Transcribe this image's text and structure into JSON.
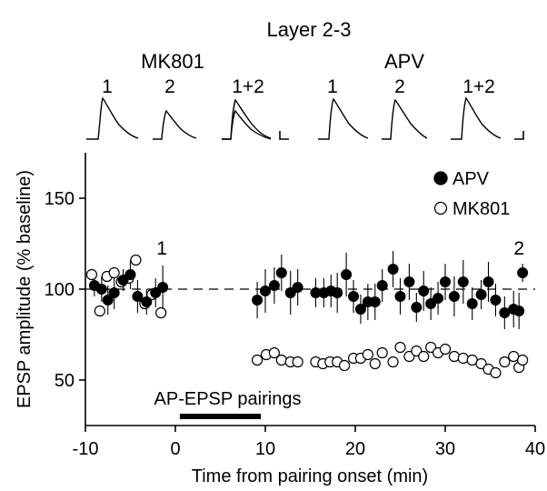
{
  "chart_data": {
    "type": "scatter",
    "title": "Layer 2-3",
    "xlabel": "Time from pairing onset (min)",
    "ylabel": "EPSP amplitude (% baseline)",
    "xlim": [
      -10,
      40
    ],
    "ylim": [
      25,
      175
    ],
    "xticks": [
      -10,
      0,
      10,
      20,
      30,
      40
    ],
    "yticks": [
      50,
      100,
      150
    ],
    "reference_line": 100,
    "pairing_bar": {
      "label": "AP-EPSP pairings",
      "start": 0.5,
      "end": 9.5
    },
    "annotations": [
      {
        "text": "1",
        "x": -1.5,
        "y": 119
      },
      {
        "text": "2",
        "x": 38.2,
        "y": 119
      }
    ],
    "legend_position": "top-right",
    "series": [
      {
        "name": "APV",
        "marker": "filled",
        "color": "#000000",
        "x": [
          -9,
          -8.2,
          -7.5,
          -6.8,
          -5.8,
          -5.0,
          -4.2,
          -3.2,
          -2.2,
          -1.4,
          9.1,
          10.0,
          11.0,
          11.8,
          12.8,
          13.6,
          15.6,
          16.5,
          17.3,
          18.0,
          19.0,
          19.8,
          20.6,
          21.4,
          22.2,
          23.0,
          24.2,
          25.0,
          26.0,
          26.8,
          27.6,
          28.4,
          29.2,
          30.0,
          31.0,
          32.0,
          33.0,
          34.0,
          34.8,
          35.6,
          36.6,
          37.6,
          38.2,
          38.6
        ],
        "y": [
          102,
          100,
          94,
          98,
          105,
          108,
          96,
          93,
          98,
          101,
          94,
          99,
          102,
          109,
          98,
          101,
          98,
          98,
          99,
          98,
          108,
          96,
          89,
          93,
          93,
          102,
          111,
          96,
          104,
          90,
          99,
          92,
          95,
          104,
          96,
          104,
          92,
          97,
          104,
          94,
          87,
          89,
          88,
          109
        ],
        "err": [
          6,
          7,
          8,
          9,
          6,
          8,
          9,
          7,
          8,
          12,
          10,
          12,
          10,
          10,
          12,
          10,
          8,
          8,
          9,
          11,
          12,
          9,
          8,
          10,
          10,
          9,
          10,
          10,
          10,
          8,
          11,
          9,
          9,
          10,
          11,
          12,
          9,
          8,
          11,
          9,
          9,
          10,
          10,
          5
        ]
      },
      {
        "name": "MK801",
        "marker": "open",
        "color": "#000000",
        "x": [
          -9.3,
          -8.4,
          -7.6,
          -6.8,
          -6.0,
          -5.2,
          -4.4,
          -3.4,
          -2.6,
          -1.6,
          9.1,
          10.1,
          11.0,
          11.8,
          12.8,
          13.6,
          15.6,
          16.4,
          17.2,
          18.0,
          18.8,
          19.8,
          20.6,
          21.4,
          22.2,
          23.0,
          24.2,
          25.0,
          26.0,
          26.8,
          27.6,
          28.4,
          29.2,
          30.0,
          31.0,
          32.0,
          33.0,
          34.0,
          34.8,
          35.6,
          36.6,
          37.6,
          38.2,
          38.6
        ],
        "y": [
          108,
          88,
          107,
          109,
          104,
          106,
          116,
          92,
          97,
          87,
          61,
          64,
          65,
          61,
          60,
          60,
          60,
          59,
          60,
          60,
          58,
          62,
          62,
          64,
          59,
          65,
          60,
          68,
          63,
          66,
          63,
          68,
          65,
          67,
          63,
          62,
          61,
          59,
          56,
          54,
          60,
          63,
          57,
          61
        ]
      }
    ]
  },
  "inset": {
    "left_label": "MK801",
    "right_label": "APV",
    "trace_labels": [
      "1",
      "2",
      "1+2",
      "1",
      "2",
      "1+2"
    ]
  }
}
